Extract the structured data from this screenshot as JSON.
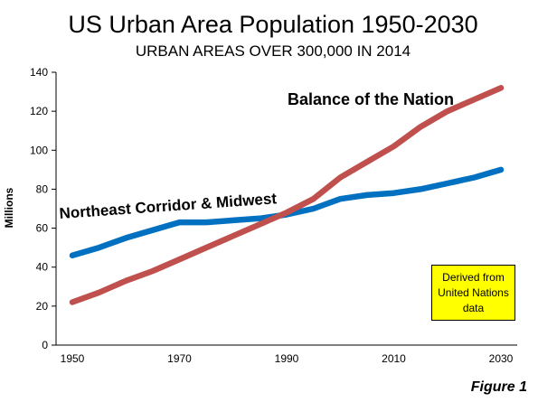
{
  "chart_data": {
    "type": "line",
    "title": "US Urban Area Population 1950-2030",
    "subtitle": "URBAN AREAS OVER 300,000 IN 2014",
    "xlabel": "",
    "ylabel": "Millions",
    "xlim": [
      1950,
      2030
    ],
    "ylim": [
      0,
      140
    ],
    "x_ticks": [
      1950,
      1970,
      1990,
      2010,
      2030
    ],
    "y_ticks": [
      0,
      20,
      40,
      60,
      80,
      100,
      120,
      140
    ],
    "grid": false,
    "legend": "none",
    "x": [
      1950,
      1955,
      1960,
      1965,
      1970,
      1975,
      1980,
      1985,
      1990,
      1995,
      2000,
      2005,
      2010,
      2015,
      2020,
      2025,
      2030
    ],
    "series": [
      {
        "name": "Northeast Corridor & Midwest",
        "color": "#0070c0",
        "values": [
          46,
          50,
          55,
          59,
          63,
          63,
          64,
          65,
          67,
          70,
          75,
          77,
          78,
          80,
          83,
          86,
          90
        ]
      },
      {
        "name": "Balance of the Nation",
        "color": "#c0504d",
        "values": [
          22,
          27,
          33,
          38,
          44,
          50,
          56,
          62,
          68,
          75,
          86,
          94,
          102,
          112,
          120,
          126,
          132
        ]
      }
    ],
    "annotations": {
      "note": "Derived from\nUnited Nations\ndata"
    }
  },
  "figure_label": "Figure 1"
}
